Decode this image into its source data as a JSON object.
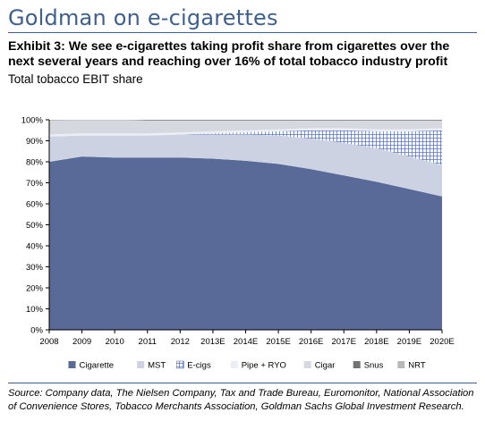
{
  "headline": "Goldman on e-cigarettes",
  "exhibit_title": "Exhibit 3: We see e-cigarettes taking profit share from cigarettes over the next several years and reaching over 16% of total tobacco industry profit",
  "source": "Source: Company data, The Nielsen Company, Tax and Trade Bureau, Euromonitor, National Association of Convenience Stores, Tobacco Merchants Association, Goldman Sachs Global Investment Research.",
  "colors": {
    "headline": "#3f5f8f",
    "cigarette": "#596a99",
    "mst": "#cdd2e3",
    "ecigs_grid": "#5d76b8",
    "pipe_ryo": "#eceef5",
    "cigar": "#d6d8e0",
    "snus": "#737373",
    "nrt": "#b8b8b8"
  },
  "chart_data": {
    "type": "area",
    "stacked": true,
    "title": "Total tobacco EBIT share",
    "xlabel": "",
    "ylabel": "",
    "categories": [
      "2008",
      "2009",
      "2010",
      "2011",
      "2012",
      "2013E",
      "2014E",
      "2015E",
      "2016E",
      "2017E",
      "2018E",
      "2019E",
      "2020E"
    ],
    "ylim": [
      0,
      100
    ],
    "yticks": [
      "0%",
      "10%",
      "20%",
      "30%",
      "40%",
      "50%",
      "60%",
      "70%",
      "80%",
      "90%",
      "100%"
    ],
    "grid": false,
    "legend_position": "bottom",
    "series": [
      {
        "name": "Cigarette",
        "key": "cigarette",
        "values": [
          80,
          82.5,
          82,
          82,
          82,
          81.5,
          80.5,
          79,
          76.5,
          73.5,
          70.5,
          67,
          63.5
        ]
      },
      {
        "name": "MST",
        "key": "mst",
        "values": [
          12,
          10,
          10.5,
          10.5,
          11,
          11.5,
          12.5,
          13.5,
          14.5,
          15.5,
          16,
          15.5,
          15
        ]
      },
      {
        "name": "E-cigs",
        "key": "ecigs_grid",
        "values": [
          0,
          0,
          0,
          0,
          0,
          0.5,
          1,
          2,
          4,
          6,
          8,
          12,
          16.5
        ]
      },
      {
        "name": "Pipe + RYO",
        "key": "pipe_ryo",
        "values": [
          1,
          1,
          1,
          1,
          1,
          1,
          1,
          1,
          1,
          1,
          1,
          1,
          1
        ]
      },
      {
        "name": "Cigar",
        "key": "cigar",
        "values": [
          6.5,
          6.3,
          6.3,
          6.2,
          5.7,
          5.2,
          4.7,
          4.2,
          3.7,
          3.7,
          4.2,
          4.2,
          3.7
        ]
      },
      {
        "name": "Snus",
        "key": "snus",
        "values": [
          0,
          0,
          0,
          0.3,
          0.3,
          0.3,
          0.3,
          0.3,
          0.3,
          0.3,
          0.3,
          0.3,
          0.3
        ]
      },
      {
        "name": "NRT",
        "key": "nrt",
        "values": [
          0.5,
          0.2,
          0.2,
          0,
          0,
          0,
          0,
          0,
          0,
          0,
          0,
          0,
          0
        ]
      }
    ]
  }
}
